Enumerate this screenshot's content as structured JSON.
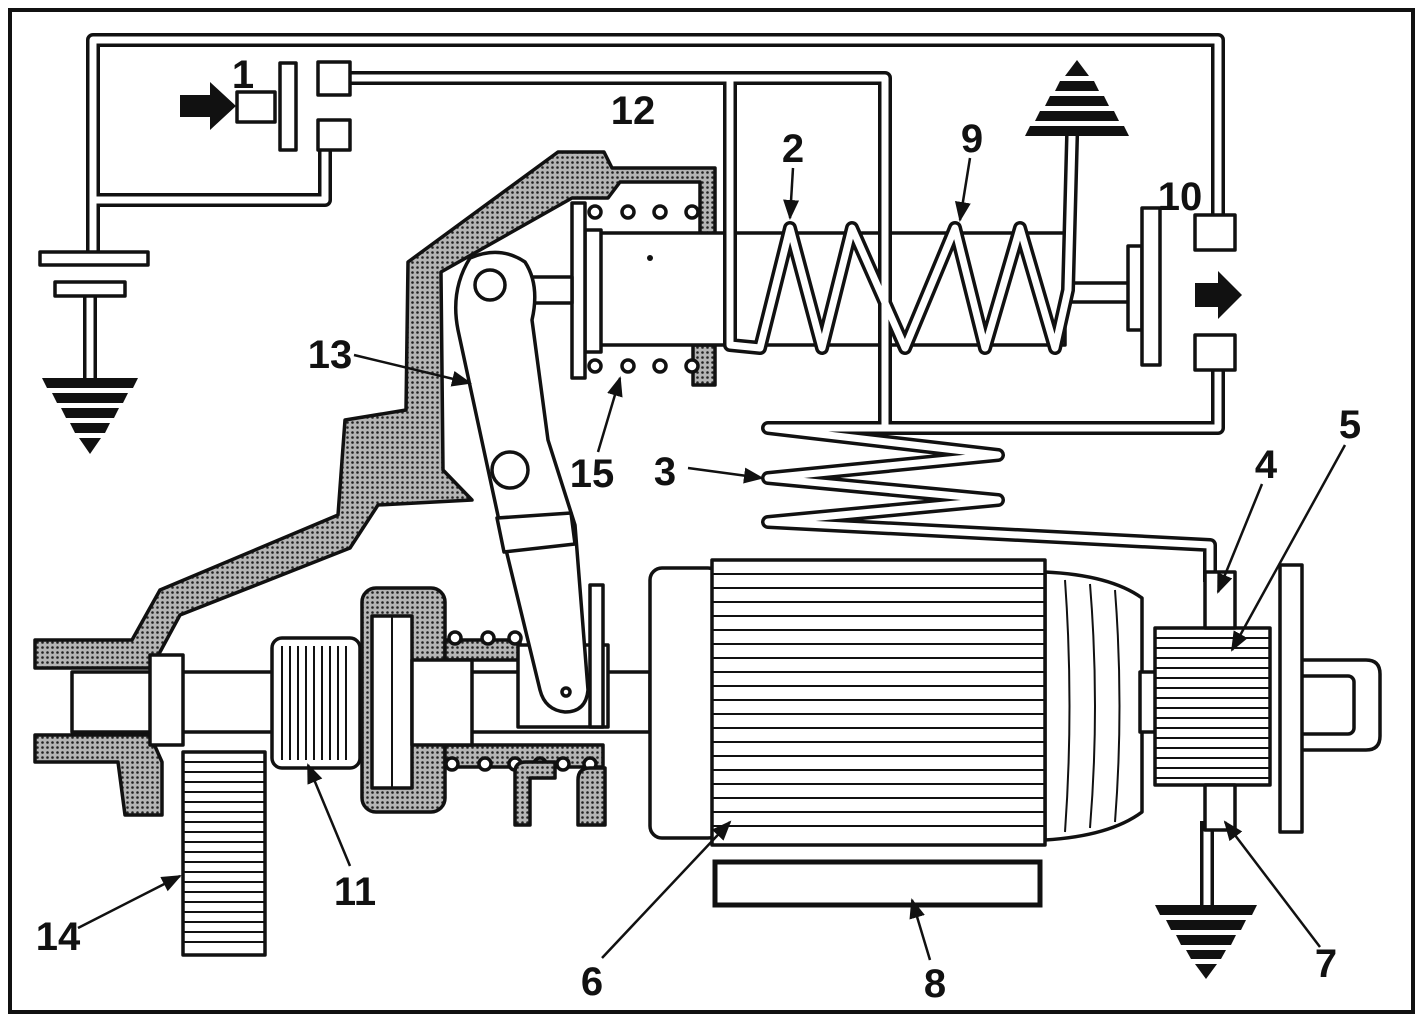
{
  "callouts": {
    "c1": "1",
    "c2": "2",
    "c3": "3",
    "c4": "4",
    "c5": "5",
    "c6": "6",
    "c7": "7",
    "c8": "8",
    "c9": "9",
    "c10": "10",
    "c11": "11",
    "c12": "12",
    "c13": "13",
    "c14": "14",
    "c15": "15"
  },
  "colors": {
    "ink": "#111111",
    "paper": "#ffffff",
    "stipple": "#9a9a9a"
  }
}
